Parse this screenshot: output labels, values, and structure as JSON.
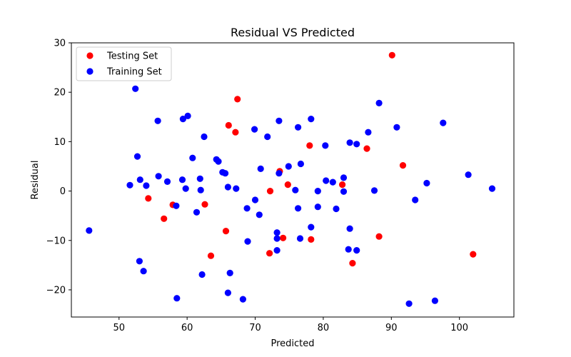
{
  "chart_data": {
    "type": "scatter",
    "title": "Residual VS Predicted",
    "xlabel": "Predicted",
    "ylabel": "Residual",
    "xlim": [
      43,
      108
    ],
    "ylim": [
      -25.5,
      30
    ],
    "xticks": [
      50,
      60,
      70,
      80,
      90,
      100
    ],
    "yticks": [
      -20,
      -10,
      0,
      10,
      20,
      30
    ],
    "grid": false,
    "legend_position": "top-left",
    "series": [
      {
        "name": "Testing Set",
        "color": "#ff0000",
        "points": [
          [
            54.3,
            -1.5
          ],
          [
            56.6,
            -5.6
          ],
          [
            57.9,
            -2.8
          ],
          [
            62.6,
            -2.7
          ],
          [
            63.5,
            -13.1
          ],
          [
            65.7,
            -8.1
          ],
          [
            66.1,
            13.3
          ],
          [
            67.1,
            11.9
          ],
          [
            67.4,
            18.6
          ],
          [
            72.2,
            0.0
          ],
          [
            72.1,
            -12.6
          ],
          [
            73.6,
            4.0
          ],
          [
            74.1,
            -9.5
          ],
          [
            74.8,
            1.3
          ],
          [
            78.0,
            9.2
          ],
          [
            78.2,
            -9.8
          ],
          [
            82.8,
            1.3
          ],
          [
            84.3,
            -14.6
          ],
          [
            86.4,
            8.6
          ],
          [
            88.2,
            -9.2
          ],
          [
            90.1,
            27.5
          ],
          [
            91.7,
            5.2
          ],
          [
            102.0,
            -12.8
          ]
        ]
      },
      {
        "name": "Training Set",
        "color": "#0000ff",
        "points": [
          [
            45.6,
            -8.0
          ],
          [
            51.6,
            1.2
          ],
          [
            52.4,
            20.7
          ],
          [
            52.7,
            7.0
          ],
          [
            53.0,
            -14.2
          ],
          [
            53.1,
            2.3
          ],
          [
            53.6,
            -16.2
          ],
          [
            54.0,
            1.1
          ],
          [
            55.7,
            14.2
          ],
          [
            55.8,
            3.0
          ],
          [
            57.1,
            1.9
          ],
          [
            58.4,
            -3.0
          ],
          [
            58.5,
            -21.7
          ],
          [
            59.3,
            2.3
          ],
          [
            59.4,
            14.6
          ],
          [
            59.8,
            0.5
          ],
          [
            60.1,
            15.2
          ],
          [
            60.8,
            6.7
          ],
          [
            61.4,
            -4.3
          ],
          [
            61.9,
            2.5
          ],
          [
            62.0,
            0.2
          ],
          [
            62.2,
            -16.9
          ],
          [
            62.5,
            11.0
          ],
          [
            64.3,
            6.4
          ],
          [
            64.6,
            6.0
          ],
          [
            65.2,
            3.8
          ],
          [
            65.6,
            3.6
          ],
          [
            66.0,
            -20.6
          ],
          [
            66.0,
            0.8
          ],
          [
            66.3,
            -16.6
          ],
          [
            67.2,
            0.5
          ],
          [
            68.2,
            -21.9
          ],
          [
            68.8,
            -3.5
          ],
          [
            68.9,
            -10.2
          ],
          [
            69.9,
            12.5
          ],
          [
            70.0,
            -1.8
          ],
          [
            70.6,
            -4.8
          ],
          [
            70.8,
            4.5
          ],
          [
            71.8,
            11.0
          ],
          [
            73.2,
            -8.4
          ],
          [
            73.2,
            -9.6
          ],
          [
            73.2,
            -12.0
          ],
          [
            73.5,
            3.6
          ],
          [
            73.5,
            14.2
          ],
          [
            74.9,
            5.0
          ],
          [
            75.9,
            0.2
          ],
          [
            76.3,
            12.9
          ],
          [
            76.3,
            -3.5
          ],
          [
            76.6,
            -9.6
          ],
          [
            76.7,
            5.5
          ],
          [
            78.2,
            -7.3
          ],
          [
            78.2,
            14.6
          ],
          [
            79.2,
            0.0
          ],
          [
            79.2,
            -3.2
          ],
          [
            80.3,
            9.2
          ],
          [
            80.4,
            2.1
          ],
          [
            81.4,
            1.8
          ],
          [
            81.9,
            -3.6
          ],
          [
            83.0,
            -0.1
          ],
          [
            83.0,
            2.7
          ],
          [
            83.7,
            -11.8
          ],
          [
            83.9,
            9.8
          ],
          [
            83.9,
            -7.6
          ],
          [
            84.9,
            9.5
          ],
          [
            84.9,
            -12.0
          ],
          [
            86.6,
            11.9
          ],
          [
            87.5,
            0.1
          ],
          [
            88.2,
            17.8
          ],
          [
            90.8,
            12.9
          ],
          [
            92.6,
            -22.8
          ],
          [
            93.5,
            -1.8
          ],
          [
            95.2,
            1.6
          ],
          [
            96.4,
            -22.2
          ],
          [
            97.6,
            13.8
          ],
          [
            101.3,
            3.3
          ],
          [
            104.8,
            0.5
          ]
        ]
      }
    ]
  }
}
